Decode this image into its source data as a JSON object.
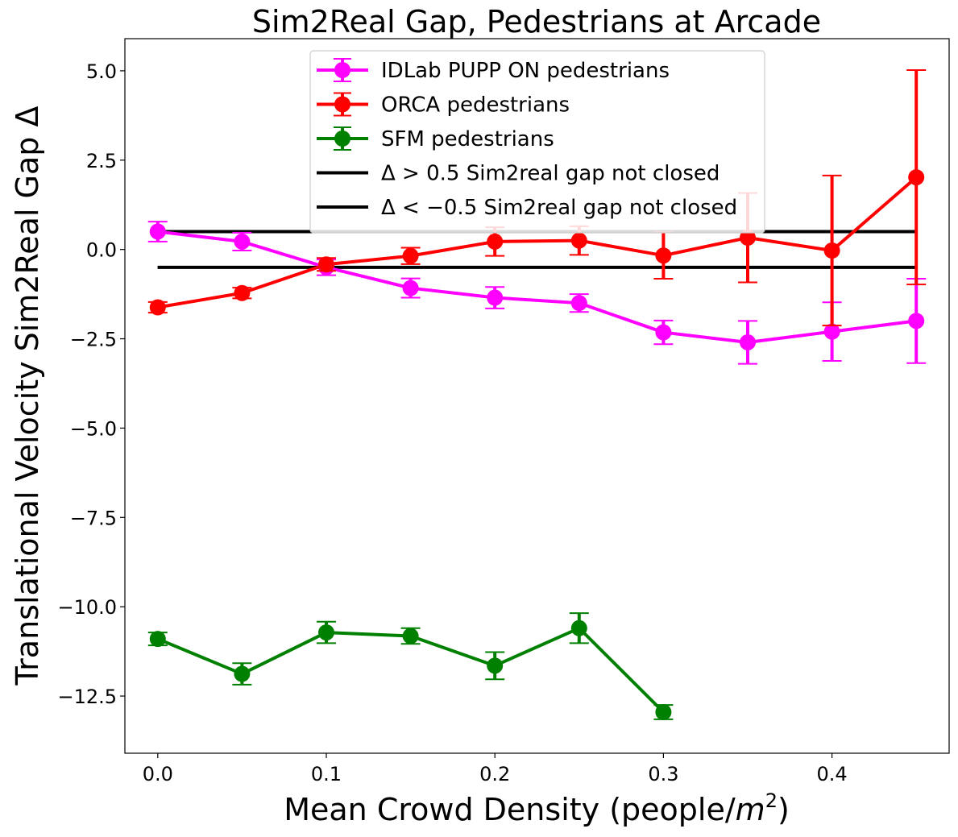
{
  "chart_data": {
    "type": "line",
    "title": "Sim2Real Gap, Pedestrians at Arcade",
    "xlabel": "Mean Crowd Density (people/",
    "xlabel_unit": "m",
    "xlabel_exp": "2",
    "xlabel_close": ")",
    "ylabel": "Translational Velocity Sim2Real Gap Δ",
    "xlim": [
      -0.0195,
      0.4695
    ],
    "ylim": [
      -14.1,
      5.9
    ],
    "x_ticks": [
      0.0,
      0.1,
      0.2,
      0.3,
      0.4
    ],
    "x_tick_labels": [
      "0.0",
      "0.1",
      "0.2",
      "0.3",
      "0.4"
    ],
    "y_ticks": [
      5.0,
      2.5,
      0.0,
      -2.5,
      -5.0,
      -7.5,
      -10.0,
      -12.5
    ],
    "y_tick_labels": [
      "5.0",
      "2.5",
      "0.0",
      "−2.5",
      "−5.0",
      "−7.5",
      "−10.0",
      "−12.5"
    ],
    "grid": false,
    "legend_position": "top-center",
    "series": [
      {
        "name": "IDLab PUPP ON pedestrians",
        "color": "#ff00ff",
        "x": [
          0.0,
          0.05,
          0.1,
          0.15,
          0.2,
          0.25,
          0.3,
          0.35,
          0.4,
          0.45
        ],
        "y": [
          0.5,
          0.22,
          -0.5,
          -1.08,
          -1.35,
          -1.5,
          -2.32,
          -2.6,
          -2.3,
          -2.0
        ],
        "err": [
          0.28,
          0.25,
          0.22,
          0.27,
          0.3,
          0.25,
          0.33,
          0.6,
          0.82,
          1.18
        ]
      },
      {
        "name": "ORCA pedestrians",
        "color": "#ff0000",
        "x": [
          0.0,
          0.05,
          0.1,
          0.15,
          0.2,
          0.25,
          0.3,
          0.35,
          0.4,
          0.45
        ],
        "y": [
          -1.62,
          -1.22,
          -0.42,
          -0.18,
          0.22,
          0.25,
          -0.17,
          0.33,
          -0.03,
          2.02
        ],
        "err": [
          0.15,
          0.15,
          0.18,
          0.23,
          0.4,
          0.4,
          0.65,
          1.25,
          2.1,
          3.0
        ]
      },
      {
        "name": "SFM pedestrians",
        "color": "#008000",
        "x": [
          0.0,
          0.05,
          0.1,
          0.15,
          0.2,
          0.25,
          0.3
        ],
        "y": [
          -10.9,
          -11.88,
          -10.72,
          -10.82,
          -11.65,
          -10.6,
          -12.95
        ],
        "err": [
          0.18,
          0.3,
          0.3,
          0.22,
          0.38,
          0.42,
          0.2
        ]
      }
    ],
    "hlines": [
      {
        "name": "Δ > 0.5 Sim2real gap not closed",
        "y": 0.5,
        "color": "#000000"
      },
      {
        "name": "Δ < −0.5 Sim2real gap not closed",
        "y": -0.5,
        "color": "#000000"
      }
    ]
  }
}
